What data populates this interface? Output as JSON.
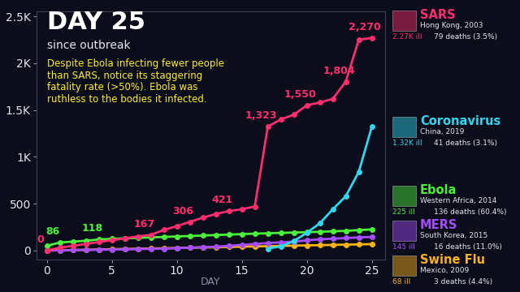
{
  "chart_data": {
    "type": "line",
    "title": "DAY 25",
    "subtitle": "since outbreak",
    "annotation": "Despite Ebola infecting fewer people\nthan SARS, notice its staggering\nfatality rate (>50%). Ebola was\nruthless to the bodies it infected.",
    "x_label": "DAY",
    "x": [
      0,
      1,
      2,
      3,
      4,
      5,
      6,
      7,
      8,
      9,
      10,
      11,
      12,
      13,
      14,
      15,
      16,
      17,
      18,
      19,
      20,
      21,
      22,
      23,
      24,
      25
    ],
    "xlim": [
      -0.8,
      26
    ],
    "xticks": [
      0,
      5,
      10,
      15,
      20,
      25
    ],
    "ylim": [
      -100,
      2550
    ],
    "yticks": [
      0,
      500,
      {
        "value": 1000,
        "label": "1K"
      },
      {
        "value": 1500,
        "label": "1.5K"
      },
      {
        "value": 2000,
        "label": "2K"
      },
      {
        "value": 2500,
        "label": "2.5K"
      }
    ],
    "grid": false,
    "data_labels": true,
    "marker": "o",
    "line_style": "solid",
    "series": [
      {
        "name": "SARS",
        "color": "#ff2e6e",
        "location": "Hong Kong, 2003",
        "cases_label": "2.27K ill",
        "deaths_label": "79 deaths (3.5%)",
        "values": [
          0,
          30,
          50,
          70,
          90,
          110,
          130,
          150,
          167,
          220,
          260,
          306,
          350,
          390,
          421,
          440,
          470,
          1323,
          1400,
          1450,
          1550,
          1580,
          1620,
          1804,
          2250,
          2270
        ],
        "value_labels": [
          "0",
          null,
          null,
          null,
          null,
          null,
          null,
          null,
          "167",
          null,
          null,
          "306",
          null,
          null,
          "421",
          null,
          null,
          "1,323",
          null,
          null,
          "1,550",
          null,
          null,
          "1,804",
          null,
          "2,270"
        ]
      },
      {
        "name": "Coronavirus",
        "color": "#33d6f0",
        "location": "China, 2019",
        "cases_label": "1.32K ill",
        "deaths_label": "41 deaths (3.1%)",
        "values": [
          null,
          null,
          null,
          null,
          null,
          null,
          null,
          null,
          null,
          null,
          null,
          null,
          null,
          null,
          null,
          null,
          null,
          20,
          45,
          100,
          190,
          290,
          440,
          580,
          840,
          1320
        ]
      },
      {
        "name": "Ebola",
        "color": "#4cf03c",
        "location": "Western Africa, 2014",
        "cases_label": "225 ill",
        "deaths_label": "136 deaths (60.4%)",
        "values": [
          49,
          86,
          95,
          104,
          118,
          125,
          130,
          135,
          140,
          145,
          150,
          155,
          160,
          165,
          170,
          175,
          180,
          184,
          188,
          192,
          196,
          200,
          205,
          210,
          218,
          225
        ],
        "value_labels": [
          null,
          "86",
          null,
          null,
          "118",
          null,
          null,
          null,
          null,
          null,
          null,
          null,
          null,
          null,
          null,
          null,
          null,
          null,
          null,
          null,
          null,
          null,
          null,
          null,
          null,
          null
        ]
      },
      {
        "name": "MERS",
        "color": "#a64dff",
        "location": "South Korea, 2015",
        "cases_label": "145 ill",
        "deaths_label": "16 deaths (11.0%)",
        "values": [
          0,
          2,
          4,
          6,
          8,
          10,
          12,
          15,
          18,
          20,
          25,
          30,
          35,
          40,
          50,
          60,
          70,
          80,
          87,
          95,
          108,
          120,
          126,
          133,
          140,
          145
        ]
      },
      {
        "name": "Swine Flu",
        "color": "#ffb31a",
        "location": "Mexico, 2009",
        "cases_label": "68 ill",
        "deaths_label": "3 deaths (4.4%)",
        "values": [
          0,
          3,
          5,
          8,
          11,
          14,
          16,
          19,
          22,
          24,
          27,
          30,
          33,
          35,
          38,
          41,
          44,
          46,
          49,
          52,
          55,
          57,
          60,
          63,
          65,
          68
        ]
      }
    ]
  }
}
